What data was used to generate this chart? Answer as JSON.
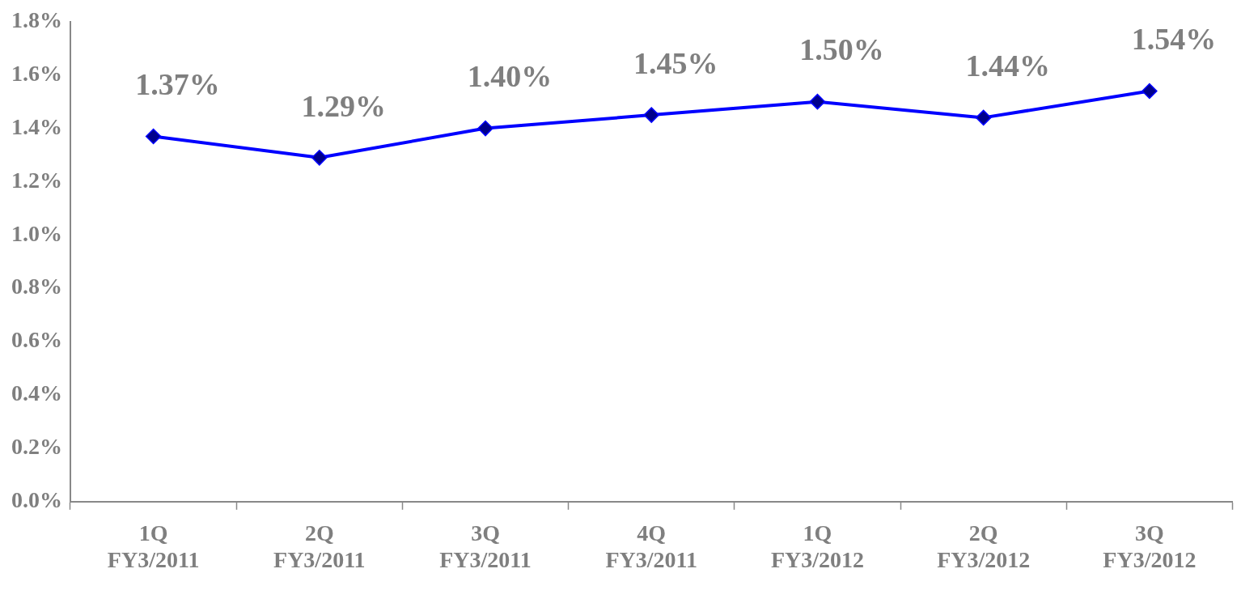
{
  "chart_data": {
    "type": "line",
    "categories": [
      "1Q FY3/2011",
      "2Q FY3/2011",
      "3Q FY3/2011",
      "4Q FY3/2011",
      "1Q FY3/2012",
      "2Q FY3/2012",
      "3Q FY3/2012"
    ],
    "series": [
      {
        "color": "#0000ff",
        "values": [
          1.37,
          1.29,
          1.4,
          1.45,
          1.5,
          1.44,
          1.54
        ],
        "value_labels": [
          "1.37%",
          "1.29%",
          "1.40%",
          "1.45%",
          "1.50%",
          "1.44%",
          "1.54%"
        ]
      }
    ],
    "ylim": [
      0,
      1.8
    ],
    "yticks": [
      {
        "value": 0,
        "label": "0.0%"
      },
      {
        "value": 0.2,
        "label": "0.2%"
      },
      {
        "value": 0.4,
        "label": "0.4%"
      },
      {
        "value": 0.6,
        "label": "0.6%"
      },
      {
        "value": 0.8,
        "label": "0.8%"
      },
      {
        "value": 1.0,
        "label": "1.0%"
      },
      {
        "value": 1.2,
        "label": "1.2%"
      },
      {
        "value": 1.4,
        "label": "1.4%"
      },
      {
        "value": 1.6,
        "label": "1.6%"
      },
      {
        "value": 1.8,
        "label": "1.8%"
      }
    ],
    "grid": false,
    "legend": false,
    "marker": "diamond",
    "line_style": "solid"
  }
}
